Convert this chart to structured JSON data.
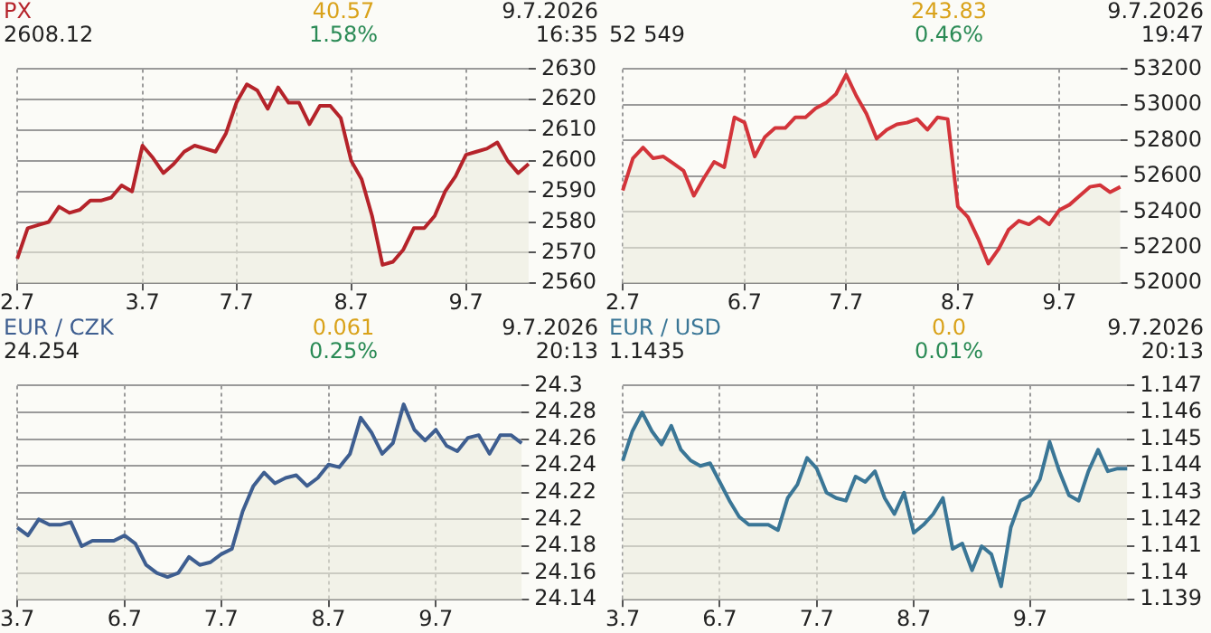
{
  "chart_data": [
    {
      "type": "area",
      "title": "PX",
      "annotations": [
        "2608.12",
        "40.57",
        "1.58%",
        "9.7.2026",
        "16:35"
      ],
      "color": "#b5232a",
      "grid": true,
      "categories": [
        "2.7",
        null,
        null,
        null,
        null,
        null,
        null,
        null,
        null,
        null,
        null,
        null,
        "3.7",
        null,
        null,
        null,
        null,
        null,
        null,
        null,
        null,
        "7.7",
        null,
        null,
        null,
        null,
        null,
        null,
        null,
        null,
        null,
        null,
        "8.7",
        null,
        null,
        null,
        null,
        null,
        null,
        null,
        null,
        null,
        null,
        "9.7",
        null,
        null,
        null,
        null,
        null,
        null
      ],
      "values": [
        2568,
        2578,
        2579,
        2580,
        2585,
        2583,
        2584,
        2587,
        2587,
        2588,
        2592,
        2590,
        2605,
        2601,
        2596,
        2599,
        2603,
        2605,
        2604,
        2603,
        2609,
        2619,
        2625,
        2623,
        2617,
        2624,
        2619,
        2619,
        2612,
        2618,
        2618,
        2614,
        2600,
        2594,
        2582,
        2566,
        2567,
        2571,
        2578,
        2578,
        2582,
        2590,
        2595,
        2602,
        2603,
        2604,
        2606,
        2600,
        2596,
        2599
      ],
      "ylim": [
        2560,
        2630
      ],
      "yticks": [
        2560,
        2570,
        2580,
        2590,
        2600,
        2610,
        2620,
        2630
      ]
    },
    {
      "type": "area",
      "annotations": [
        "52 549",
        "243.83",
        "0.46%",
        "9.7.2026",
        "19:47"
      ],
      "color": "#d3343a",
      "grid": true,
      "categories": [
        "2.7",
        null,
        null,
        null,
        null,
        null,
        null,
        null,
        null,
        null,
        null,
        null,
        "6.7",
        null,
        null,
        null,
        null,
        null,
        null,
        null,
        null,
        null,
        "7.7",
        null,
        null,
        null,
        null,
        null,
        null,
        null,
        null,
        null,
        null,
        "8.7",
        null,
        null,
        null,
        null,
        null,
        null,
        null,
        null,
        null,
        "9.7",
        null,
        null,
        null,
        null,
        null,
        null
      ],
      "values": [
        52520,
        52700,
        52760,
        52700,
        52710,
        52670,
        52630,
        52490,
        52590,
        52680,
        52650,
        52930,
        52900,
        52710,
        52820,
        52870,
        52870,
        52930,
        52930,
        52980,
        53010,
        53060,
        53170,
        53050,
        52950,
        52810,
        52860,
        52890,
        52900,
        52920,
        52860,
        52930,
        52920,
        52430,
        52370,
        52250,
        52110,
        52190,
        52300,
        52350,
        52330,
        52370,
        52330,
        52410,
        52440,
        52490,
        52540,
        52550,
        52510,
        52540
      ],
      "ylim": [
        52000,
        53200
      ],
      "yticks": [
        52000,
        52200,
        52400,
        52600,
        52800,
        53000,
        53200
      ]
    },
    {
      "type": "area",
      "title": "EUR / CZK",
      "annotations": [
        "24.254",
        "0.061",
        "0.25%",
        "9.7.2026",
        "20:13"
      ],
      "color": "#3e5e90",
      "grid": true,
      "categories": [
        "3.7",
        null,
        null,
        null,
        null,
        null,
        null,
        null,
        null,
        null,
        "6.7",
        null,
        null,
        null,
        null,
        null,
        null,
        null,
        null,
        "7.7",
        null,
        null,
        null,
        null,
        null,
        null,
        null,
        null,
        null,
        "8.7",
        null,
        null,
        null,
        null,
        null,
        null,
        null,
        null,
        null,
        "9.7",
        null,
        null,
        null,
        null,
        null,
        null,
        null,
        null
      ],
      "values": [
        24.194,
        24.188,
        24.2,
        24.196,
        24.196,
        24.198,
        24.18,
        24.184,
        24.184,
        24.184,
        24.188,
        24.182,
        24.166,
        24.16,
        24.157,
        24.16,
        24.172,
        24.166,
        24.168,
        24.174,
        24.178,
        24.206,
        24.225,
        24.235,
        24.227,
        24.231,
        24.233,
        24.225,
        24.231,
        24.241,
        24.239,
        24.249,
        24.276,
        24.265,
        24.249,
        24.257,
        24.286,
        24.267,
        24.259,
        24.267,
        24.255,
        24.251,
        24.261,
        24.263,
        24.249,
        24.263,
        24.263,
        24.257
      ],
      "ylim": [
        24.14,
        24.3
      ],
      "yticks": [
        24.14,
        24.16,
        24.18,
        24.2,
        24.22,
        24.24,
        24.26,
        24.28,
        24.3
      ]
    },
    {
      "type": "area",
      "title": "EUR / USD",
      "annotations": [
        "1.1435",
        "0.0",
        "0.01%",
        "9.7.2026",
        "20:13"
      ],
      "color": "#3a7696",
      "grid": true,
      "categories": [
        "3.7",
        null,
        null,
        null,
        null,
        null,
        null,
        null,
        null,
        null,
        "6.7",
        null,
        null,
        null,
        null,
        null,
        null,
        null,
        null,
        null,
        "7.7",
        null,
        null,
        null,
        null,
        null,
        null,
        null,
        null,
        null,
        "8.7",
        null,
        null,
        null,
        null,
        null,
        null,
        null,
        null,
        null,
        null,
        null,
        "9.7",
        null,
        null,
        null,
        null,
        null,
        null,
        null,
        null,
        null,
        null
      ],
      "values": [
        1.1442,
        1.1453,
        1.146,
        1.1453,
        1.1448,
        1.1455,
        1.1446,
        1.1442,
        1.144,
        1.1441,
        1.1434,
        1.1427,
        1.1421,
        1.1418,
        1.1418,
        1.1418,
        1.1416,
        1.1428,
        1.1433,
        1.1443,
        1.1439,
        1.143,
        1.1428,
        1.1427,
        1.1436,
        1.1434,
        1.1438,
        1.1428,
        1.1422,
        1.143,
        1.1415,
        1.1418,
        1.1422,
        1.1428,
        1.1409,
        1.1411,
        1.1401,
        1.141,
        1.1407,
        1.1395,
        1.1417,
        1.1427,
        1.1429,
        1.1435,
        1.1449,
        1.1438,
        1.1429,
        1.1427,
        1.1438,
        1.1446,
        1.1438,
        1.1439,
        1.1439
      ],
      "ylim": [
        1.139,
        1.147
      ],
      "yticks": [
        1.139,
        1.14,
        1.141,
        1.142,
        1.143,
        1.144,
        1.145,
        1.146,
        1.147
      ]
    }
  ]
}
